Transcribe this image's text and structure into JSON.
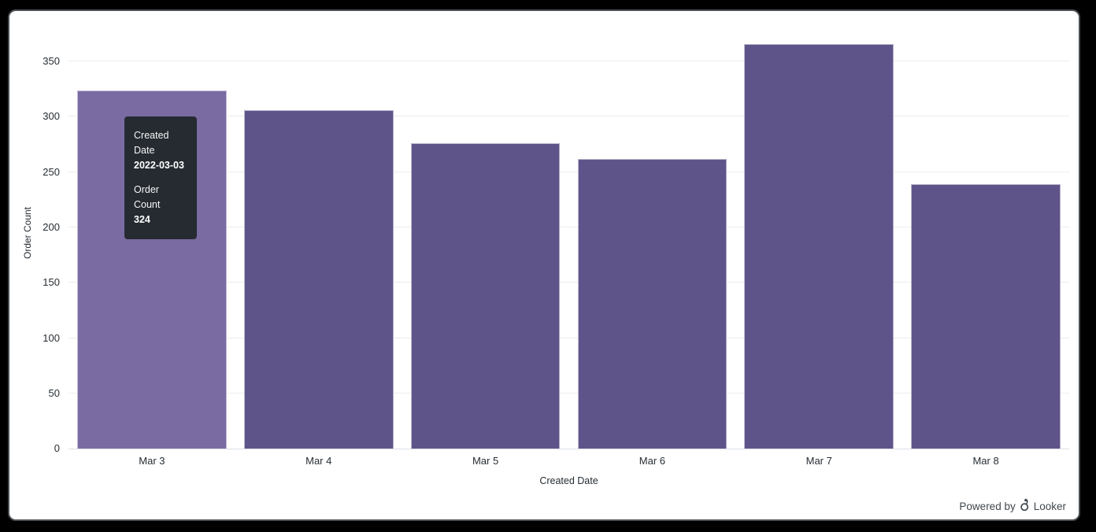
{
  "chart_data": {
    "type": "bar",
    "categories": [
      "Mar 3",
      "Mar 4",
      "Mar 5",
      "Mar 6",
      "Mar 7",
      "Mar 8"
    ],
    "values": [
      324,
      306,
      276,
      262,
      366,
      239
    ],
    "xlabel": "Created Date",
    "ylabel": "Order Count",
    "y_ticks": [
      0,
      50,
      100,
      150,
      200,
      250,
      300,
      350
    ],
    "ylim": [
      0,
      390
    ],
    "grid": "horizontal",
    "legend": "none",
    "bar_color": "#5f548a",
    "highlighted_bar_index": 0,
    "highlighted_bar_color": "#7a6ba2"
  },
  "tooltip": {
    "field1_label": "Created Date",
    "field1_value": "2022-03-03",
    "field2_label": "Order Count",
    "field2_value": "324",
    "background": "#262b31"
  },
  "footer": {
    "powered_by_label": "Powered by",
    "brand_label": "Looker"
  }
}
